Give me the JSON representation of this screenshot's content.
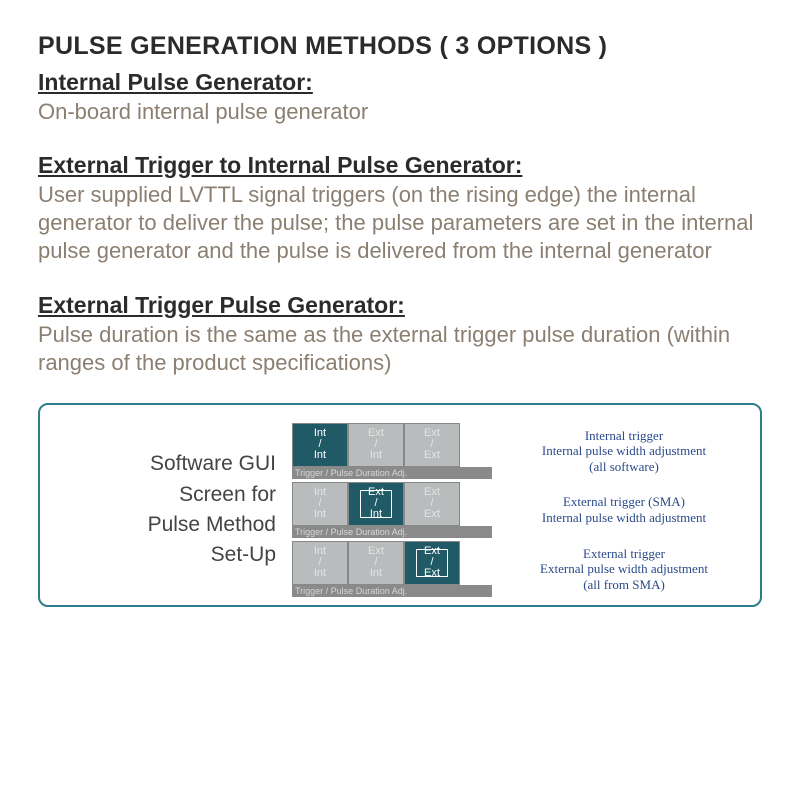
{
  "mainTitle": "PULSE GENERATION METHODS ( 3 OPTIONS )",
  "sections": [
    {
      "title": "Internal Pulse Generator:",
      "body": "On-board internal pulse generator"
    },
    {
      "title": "External Trigger to Internal Pulse Generator: ",
      "body": "User supplied LVTTL signal triggers (on the rising edge) the internal generator to deliver the pulse; the pulse parameters are set in the internal pulse generator and the pulse is delivered from the internal generator"
    },
    {
      "title": "External Trigger Pulse Generator:",
      "body": "Pulse duration is the same as the external trigger pulse duration (within ranges of the product specifications)"
    }
  ],
  "guiPanel": {
    "labelLines": [
      "Software GUI",
      "Screen for",
      "Pulse Method",
      "Set-Up"
    ],
    "captionText": "Trigger / Pulse Duration Adj.",
    "buttonLabels": {
      "intInt": "Int\n/\nInt",
      "extInt": "Ext\n/\nInt",
      "extExt": "Ext\n/\nExt"
    },
    "rows": [
      {
        "activeIdx": 0,
        "desc": "Internal trigger\nInternal pulse width adjustment\n(all software)"
      },
      {
        "activeIdx": 1,
        "desc": "External trigger (SMA)\nInternal pulse width adjustment"
      },
      {
        "activeIdx": 2,
        "desc": "External trigger\nExternal pulse width adjustment\n(all from SMA)"
      }
    ],
    "colors": {
      "border": "#2b7e88",
      "activeBg": "#1f5a66",
      "inactiveBg": "#b9bcbd",
      "descText": "#2a4a8a"
    }
  }
}
